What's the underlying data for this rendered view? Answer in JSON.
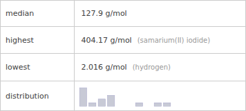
{
  "chart_data": {
    "type": "bar",
    "rows": [
      {
        "label": "median",
        "value": "127.9 g/mol"
      },
      {
        "label": "highest",
        "value": "404.17 g/mol",
        "note": "(samarium(II) iodide)"
      },
      {
        "label": "lowest",
        "value": "2.016 g/mol",
        "note": "(hydrogen)"
      },
      {
        "label": "distribution"
      }
    ],
    "categories": [
      null,
      null,
      null,
      null,
      null,
      null,
      null,
      null,
      null,
      null
    ],
    "values": [
      5,
      1,
      2,
      3,
      0,
      0,
      1,
      0,
      1,
      1
    ],
    "color": "#c8cad6",
    "ylim": [
      0,
      5.75
    ],
    "tick_labels": false
  }
}
